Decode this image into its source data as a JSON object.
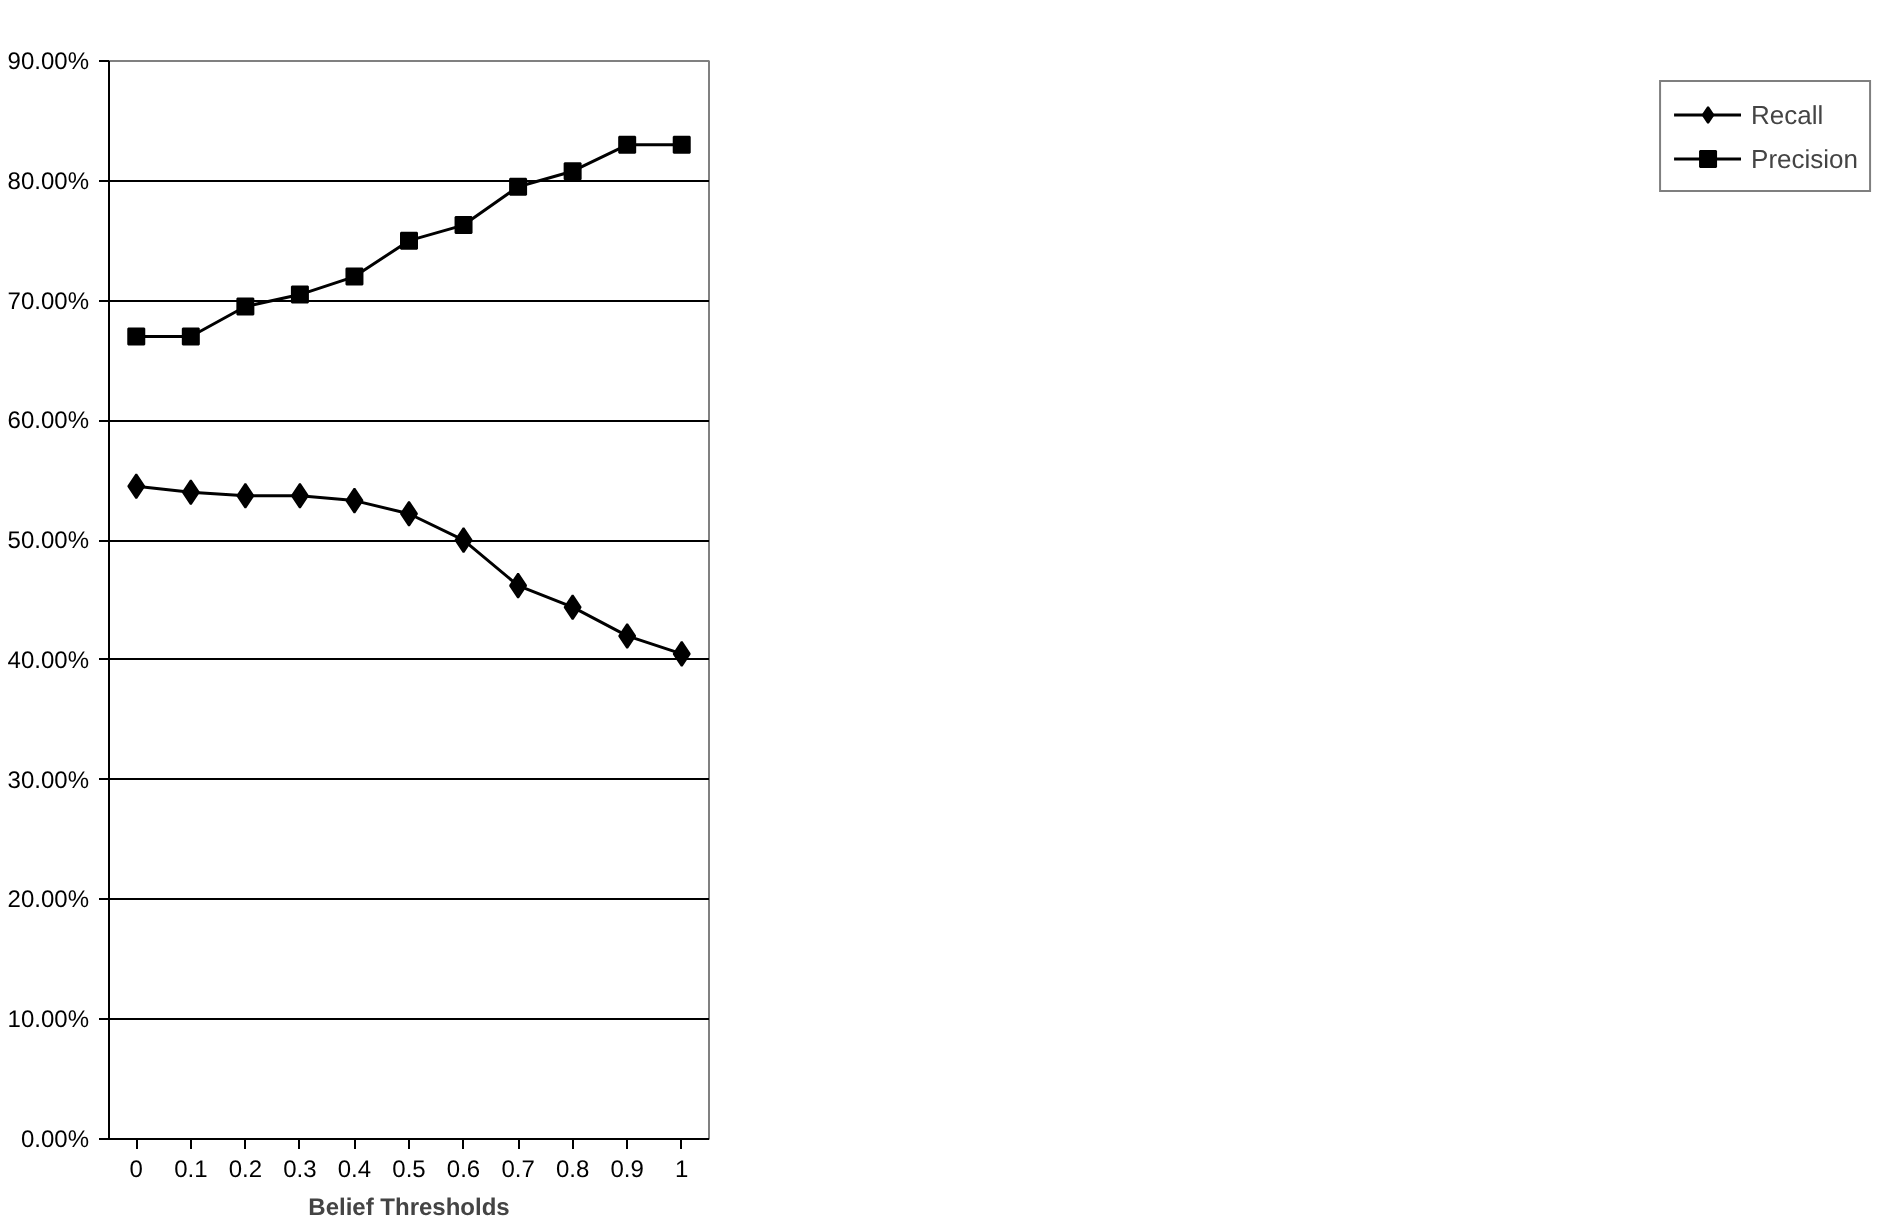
{
  "chart_data": {
    "type": "line",
    "xlabel": "Belief Thresholds",
    "categories": [
      "0",
      "0.1",
      "0.2",
      "0.3",
      "0.4",
      "0.5",
      "0.6",
      "0.7",
      "0.8",
      "0.9",
      "1"
    ],
    "series": [
      {
        "name": "Recall",
        "color": "#000000",
        "marker": "diamond",
        "values": [
          54.5,
          54.0,
          53.7,
          53.7,
          53.3,
          52.2,
          50.0,
          46.2,
          44.4,
          42.0,
          40.5
        ]
      },
      {
        "name": "Precision",
        "color": "#000000",
        "marker": "square",
        "values": [
          67.0,
          67.0,
          69.5,
          70.5,
          72.0,
          75.0,
          76.3,
          79.5,
          80.8,
          83.0,
          83.0
        ]
      }
    ],
    "ylim": [
      0,
      90
    ],
    "yticks": [
      {
        "value": 0,
        "label": "0.00%"
      },
      {
        "value": 10,
        "label": "10.00%"
      },
      {
        "value": 20,
        "label": "20.00%"
      },
      {
        "value": 30,
        "label": "30.00%"
      },
      {
        "value": 40,
        "label": "40.00%"
      },
      {
        "value": 50,
        "label": "50.00%"
      },
      {
        "value": 60,
        "label": "60.00%"
      },
      {
        "value": 70,
        "label": "70.00%"
      },
      {
        "value": 80,
        "label": "80.00%"
      },
      {
        "value": 90,
        "label": "90.00%"
      }
    ],
    "grid": "y",
    "legend": "right",
    "line_style": "solid"
  }
}
